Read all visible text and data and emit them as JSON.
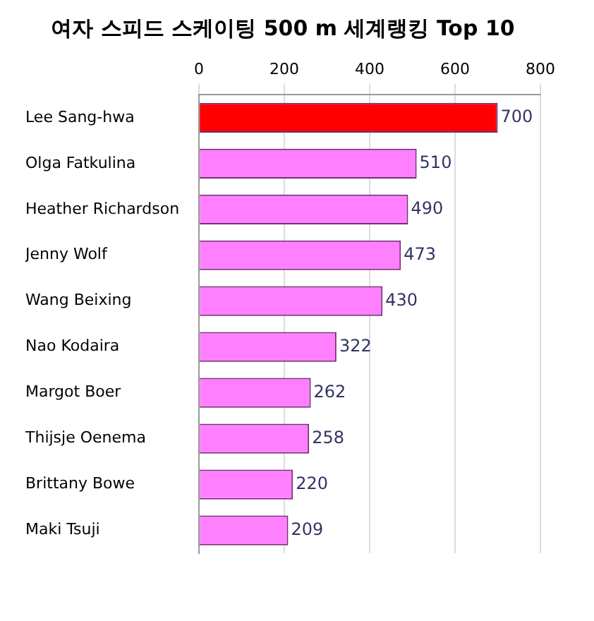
{
  "chart_data": {
    "type": "bar",
    "orientation": "horizontal",
    "title": "여자 스피드 스케이팅 500 m 세계랭킹 Top 10",
    "categories": [
      "Lee Sang-hwa",
      "Olga Fatkulina",
      "Heather Richardson",
      "Jenny Wolf",
      "Wang Beixing",
      "Nao Kodaira",
      "Margot Boer",
      "Thijsje Oenema",
      "Brittany Bowe",
      "Maki Tsuji"
    ],
    "values": [
      700,
      510,
      490,
      473,
      430,
      322,
      262,
      258,
      220,
      209
    ],
    "colors": [
      "#ff0000",
      "#ff80ff",
      "#ff80ff",
      "#ff80ff",
      "#ff80ff",
      "#ff80ff",
      "#ff80ff",
      "#ff80ff",
      "#ff80ff",
      "#ff80ff"
    ],
    "xlim": [
      0,
      800
    ],
    "xticks": [
      0,
      200,
      400,
      600,
      800
    ],
    "grid": "x",
    "data_labels": true,
    "legend": false
  }
}
